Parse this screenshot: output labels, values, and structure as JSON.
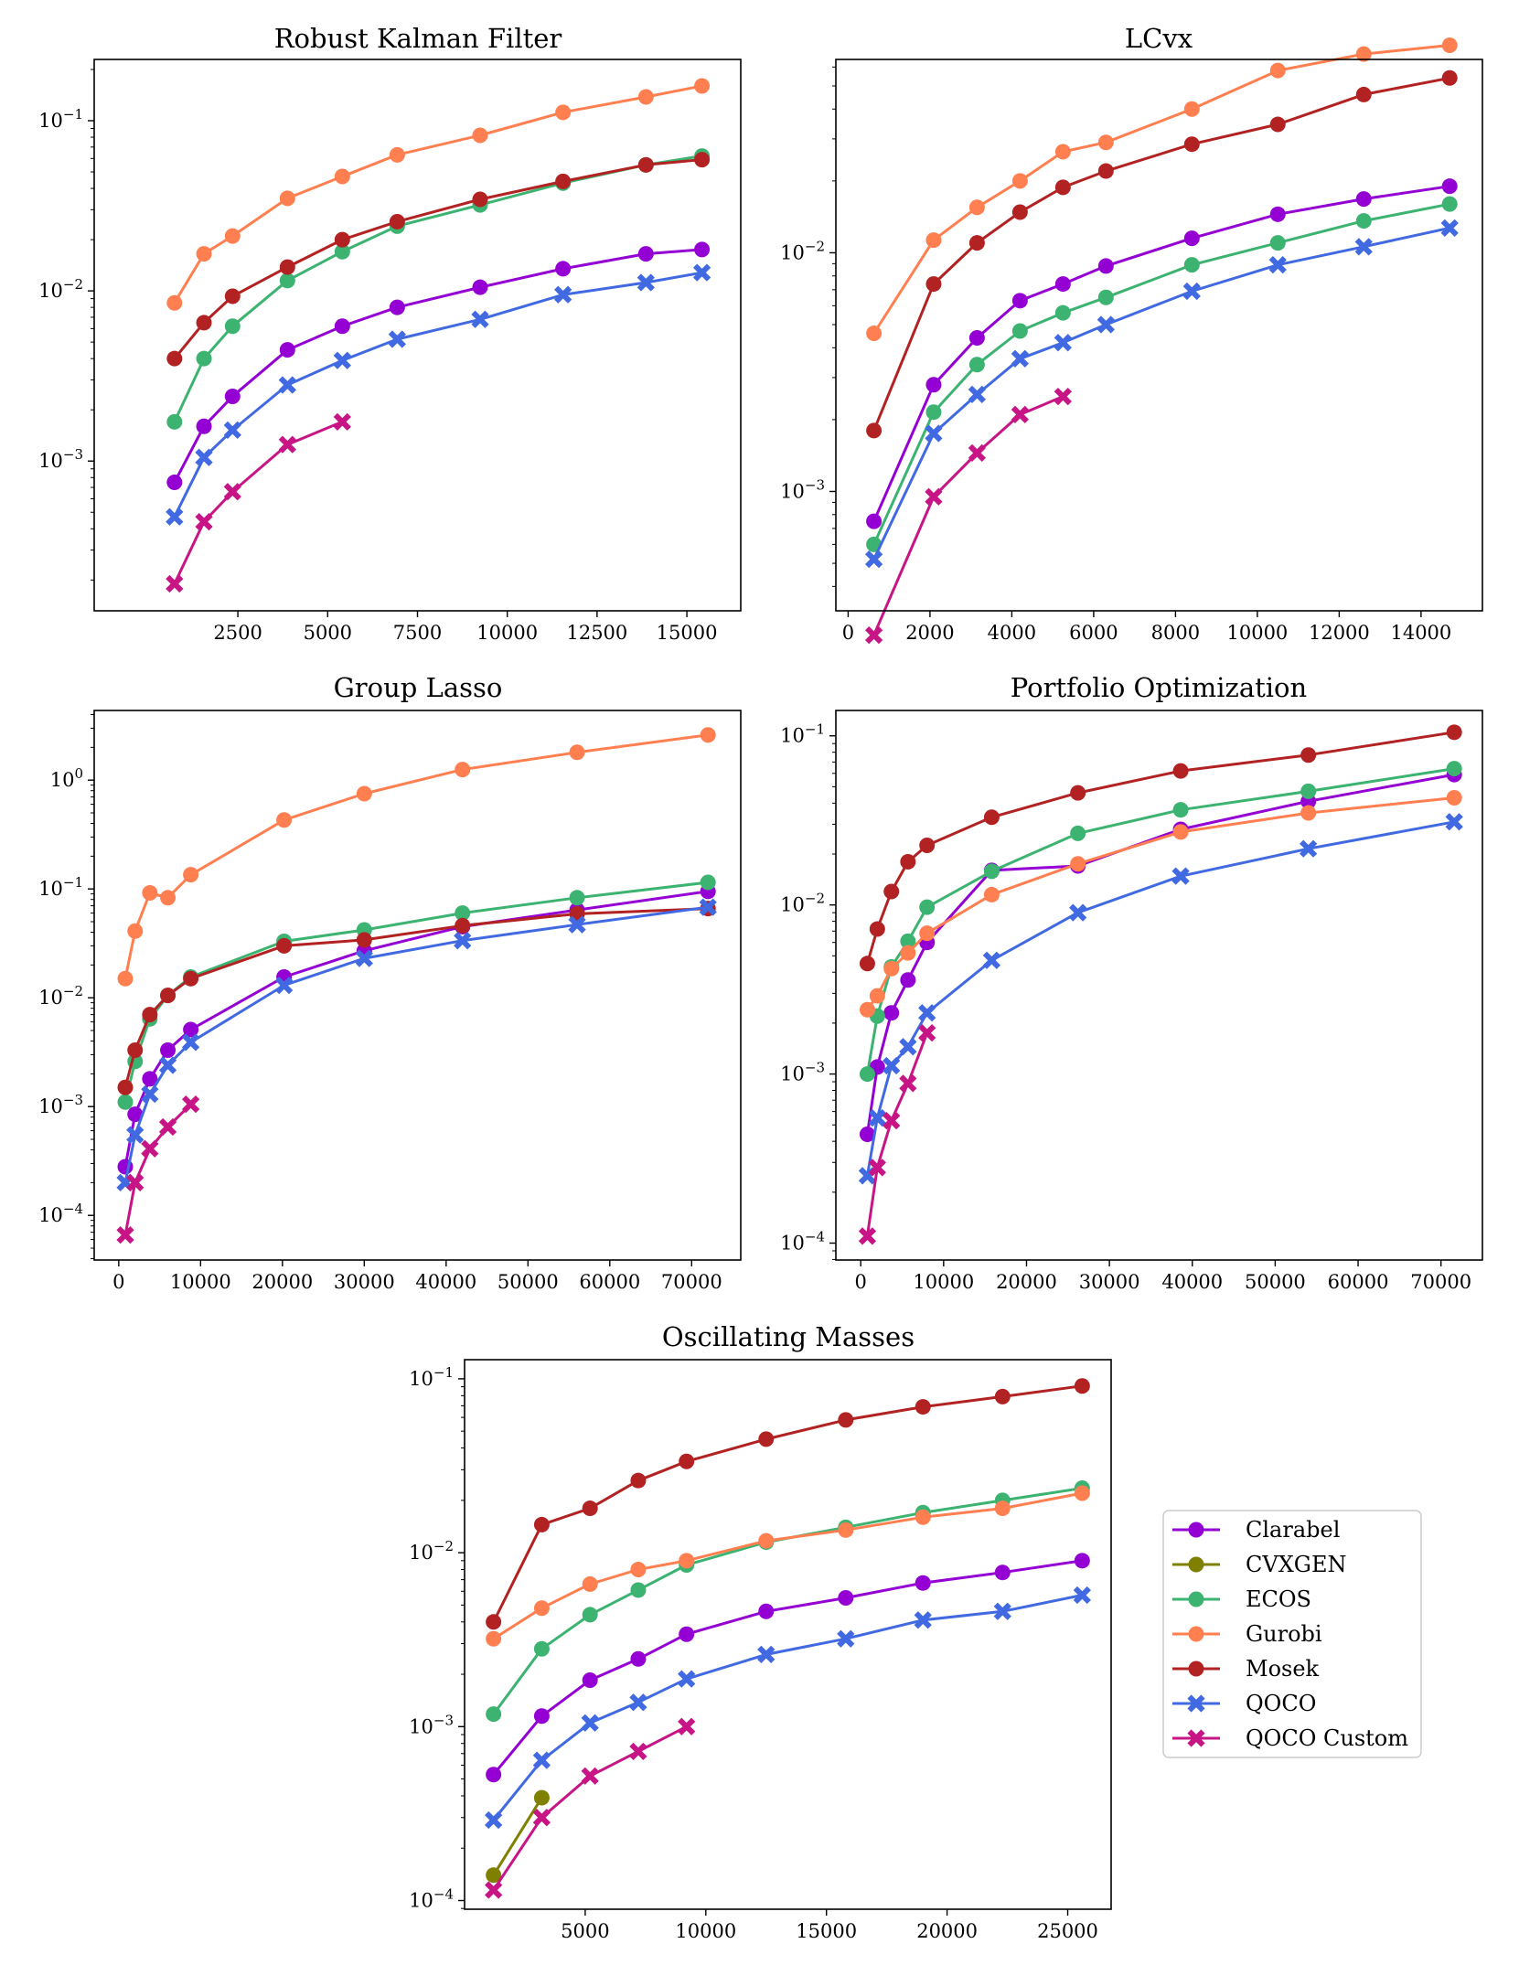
{
  "figure": {
    "series_styles": [
      {
        "name": "Clarabel",
        "color": "#9400D3",
        "marker": "circle"
      },
      {
        "name": "CVXGEN",
        "color": "#808000",
        "marker": "circle"
      },
      {
        "name": "ECOS",
        "color": "#3CB371",
        "marker": "circle"
      },
      {
        "name": "Gurobi",
        "color": "#FF7F50",
        "marker": "circle"
      },
      {
        "name": "Mosek",
        "color": "#B22222",
        "marker": "circle"
      },
      {
        "name": "QOCO",
        "color": "#4169E1",
        "marker": "cross"
      },
      {
        "name": "QOCO Custom",
        "color": "#C71585",
        "marker": "cross"
      }
    ],
    "legend": {
      "placement": "right of bottom chart",
      "entries": [
        "Clarabel",
        "CVXGEN",
        "ECOS",
        "Gurobi",
        "Mosek",
        "QOCO",
        "QOCO Custom"
      ]
    }
  },
  "chart_data": [
    {
      "type": "line",
      "title": "Robust Kalman Filter",
      "yscale": "log",
      "xlim": [
        -1500,
        16500
      ],
      "ylim_log10": [
        -3.88,
        -0.64
      ],
      "xticks": [
        2500,
        5000,
        7500,
        10000,
        12500,
        15000
      ],
      "xtick_labels": [
        "2500",
        "5000",
        "7500",
        "10000",
        "12500",
        "15000"
      ],
      "yticks_exp": [
        -3,
        -2,
        -1
      ],
      "series": [
        {
          "name": "Clarabel",
          "x": [
            736,
            1556,
            2352,
            3880,
            5408,
            6936,
            9244,
            11552,
            13860,
            15420
          ],
          "y": [
            0.00075,
            0.0016,
            0.0024,
            0.0045,
            0.0062,
            0.008,
            0.0105,
            0.0135,
            0.0165,
            0.0175
          ]
        },
        {
          "name": "ECOS",
          "x": [
            736,
            1556,
            2352,
            3880,
            5408,
            6936,
            9244,
            11552,
            13860,
            15420
          ],
          "y": [
            0.0017,
            0.004,
            0.0062,
            0.0115,
            0.017,
            0.024,
            0.032,
            0.043,
            0.055,
            0.062
          ]
        },
        {
          "name": "Gurobi",
          "x": [
            736,
            1556,
            2352,
            3880,
            5408,
            6936,
            9244,
            11552,
            13860,
            15420
          ],
          "y": [
            0.0085,
            0.0165,
            0.021,
            0.035,
            0.047,
            0.063,
            0.082,
            0.112,
            0.138,
            0.16
          ]
        },
        {
          "name": "Mosek",
          "x": [
            736,
            1556,
            2352,
            3880,
            5408,
            6936,
            9244,
            11552,
            13860,
            15420
          ],
          "y": [
            0.004,
            0.0065,
            0.0093,
            0.0138,
            0.02,
            0.0255,
            0.0345,
            0.044,
            0.055,
            0.059
          ]
        },
        {
          "name": "QOCO",
          "x": [
            736,
            1556,
            2352,
            3880,
            5408,
            6936,
            9244,
            11552,
            13860,
            15420
          ],
          "y": [
            0.00047,
            0.00105,
            0.00152,
            0.0028,
            0.0039,
            0.0052,
            0.0068,
            0.0095,
            0.0112,
            0.0128
          ]
        },
        {
          "name": "QOCO Custom",
          "x": [
            736,
            1556,
            2352,
            3880,
            5408
          ],
          "y": [
            0.00019,
            0.00044,
            0.00066,
            0.00125,
            0.0017
          ]
        }
      ]
    },
    {
      "type": "line",
      "title": "LCvx",
      "yscale": "log",
      "xlim": [
        -300,
        15500
      ],
      "ylim_log10": [
        -3.5,
        -1.19
      ],
      "xticks": [
        0,
        2000,
        4000,
        6000,
        8000,
        10000,
        12000,
        14000
      ],
      "xtick_labels": [
        "0",
        "2000",
        "4000",
        "6000",
        "8000",
        "10000",
        "12000",
        "14000"
      ],
      "yticks_exp": [
        -3,
        -2
      ],
      "series": [
        {
          "name": "Clarabel",
          "x": [
            630,
            2090,
            3150,
            4200,
            5250,
            6300,
            8400,
            10500,
            12600,
            14700
          ],
          "y": [
            0.00075,
            0.0028,
            0.0044,
            0.0063,
            0.0074,
            0.0088,
            0.0115,
            0.0145,
            0.0168,
            0.019
          ]
        },
        {
          "name": "ECOS",
          "x": [
            630,
            2090,
            3150,
            4200,
            5250,
            6300,
            8400,
            10500,
            12600,
            14700
          ],
          "y": [
            0.0006,
            0.00215,
            0.0034,
            0.0047,
            0.0056,
            0.0065,
            0.0089,
            0.011,
            0.0136,
            0.016
          ]
        },
        {
          "name": "Gurobi",
          "x": [
            630,
            2090,
            3150,
            4200,
            5250,
            6300,
            8400,
            10500,
            12600,
            14700
          ],
          "y": [
            0.0046,
            0.0113,
            0.0155,
            0.02,
            0.0265,
            0.029,
            0.04,
            0.058,
            0.068,
            0.074
          ]
        },
        {
          "name": "Mosek",
          "x": [
            630,
            2090,
            3150,
            4200,
            5250,
            6300,
            8400,
            10500,
            12600,
            14700
          ],
          "y": [
            0.0018,
            0.0074,
            0.011,
            0.0148,
            0.0188,
            0.022,
            0.0285,
            0.0345,
            0.046,
            0.054
          ]
        },
        {
          "name": "QOCO",
          "x": [
            630,
            2090,
            3150,
            4200,
            5250,
            6300,
            8400,
            10500,
            12600,
            14700
          ],
          "y": [
            0.00052,
            0.00175,
            0.00255,
            0.0036,
            0.0042,
            0.005,
            0.0069,
            0.0089,
            0.0106,
            0.0127
          ]
        },
        {
          "name": "QOCO Custom",
          "x": [
            630,
            2090,
            3150,
            4200,
            5250
          ],
          "y": [
            0.00025,
            0.00095,
            0.00145,
            0.0021,
            0.0025
          ]
        }
      ]
    },
    {
      "type": "line",
      "title": "Group Lasso",
      "yscale": "log",
      "xlim": [
        -3000,
        76000
      ],
      "ylim_log10": [
        -4.41,
        0.64
      ],
      "xticks": [
        0,
        10000,
        20000,
        30000,
        40000,
        50000,
        60000,
        70000
      ],
      "xtick_labels": [
        "0",
        "10000",
        "20000",
        "30000",
        "40000",
        "50000",
        "60000",
        "70000"
      ],
      "yticks_exp": [
        -4,
        -3,
        -2,
        -1,
        0
      ],
      "series": [
        {
          "name": "Clarabel",
          "x": [
            800,
            2000,
            3800,
            6000,
            8800,
            20200,
            30000,
            42000,
            56000,
            72000
          ],
          "y": [
            0.00028,
            0.00085,
            0.0018,
            0.0033,
            0.0051,
            0.0155,
            0.027,
            0.045,
            0.064,
            0.095
          ]
        },
        {
          "name": "ECOS",
          "x": [
            800,
            2000,
            3800,
            6000,
            8800,
            20200,
            30000,
            42000,
            56000,
            72000
          ],
          "y": [
            0.0011,
            0.0026,
            0.0064,
            0.0105,
            0.0155,
            0.033,
            0.042,
            0.06,
            0.083,
            0.115
          ]
        },
        {
          "name": "Gurobi",
          "x": [
            800,
            2000,
            3800,
            6000,
            8800,
            20200,
            30000,
            42000,
            56000,
            72000
          ],
          "y": [
            0.015,
            0.041,
            0.092,
            0.083,
            0.135,
            0.43,
            0.75,
            1.25,
            1.8,
            2.6
          ]
        },
        {
          "name": "Mosek",
          "x": [
            800,
            2000,
            3800,
            6000,
            8800,
            20200,
            30000,
            42000,
            56000,
            72000
          ],
          "y": [
            0.0015,
            0.0033,
            0.007,
            0.0105,
            0.015,
            0.03,
            0.034,
            0.046,
            0.059,
            0.066
          ]
        },
        {
          "name": "QOCO",
          "x": [
            800,
            2000,
            3800,
            6000,
            8800,
            20200,
            30000,
            42000,
            56000,
            72000
          ],
          "y": [
            0.0002,
            0.00055,
            0.0013,
            0.0024,
            0.0039,
            0.013,
            0.023,
            0.0335,
            0.047,
            0.068
          ]
        },
        {
          "name": "QOCO Custom",
          "x": [
            800,
            2000,
            3800,
            6000,
            8800
          ],
          "y": [
            6.6e-05,
            0.0002,
            0.00041,
            0.00065,
            0.00105
          ]
        }
      ]
    },
    {
      "type": "line",
      "title": "Portfolio Optimization",
      "yscale": "log",
      "xlim": [
        -3000,
        75000
      ],
      "ylim_log10": [
        -4.1,
        -0.85
      ],
      "xticks": [
        0,
        10000,
        20000,
        30000,
        40000,
        50000,
        60000,
        70000
      ],
      "xtick_labels": [
        "0",
        "10000",
        "20000",
        "30000",
        "40000",
        "50000",
        "60000",
        "70000"
      ],
      "yticks_exp": [
        -4,
        -3,
        -2,
        -1
      ],
      "series": [
        {
          "name": "Clarabel",
          "x": [
            800,
            2000,
            3700,
            5700,
            8000,
            15800,
            26200,
            38600,
            54000,
            71600
          ],
          "y": [
            0.00044,
            0.0011,
            0.0023,
            0.0036,
            0.006,
            0.016,
            0.017,
            0.028,
            0.041,
            0.059
          ]
        },
        {
          "name": "ECOS",
          "x": [
            800,
            2000,
            3700,
            5700,
            8000,
            15800,
            26200,
            38600,
            54000,
            71600
          ],
          "y": [
            0.001,
            0.0022,
            0.0043,
            0.0061,
            0.0097,
            0.0158,
            0.0265,
            0.0365,
            0.047,
            0.064
          ]
        },
        {
          "name": "Gurobi",
          "x": [
            800,
            2000,
            3700,
            5700,
            8000,
            15800,
            26200,
            38600,
            54000,
            71600
          ],
          "y": [
            0.0024,
            0.0029,
            0.0042,
            0.0052,
            0.0068,
            0.0115,
            0.0175,
            0.027,
            0.035,
            0.043
          ]
        },
        {
          "name": "Mosek",
          "x": [
            800,
            2000,
            3700,
            5700,
            8000,
            15800,
            26200,
            38600,
            54000,
            71600
          ],
          "y": [
            0.0045,
            0.0072,
            0.012,
            0.018,
            0.0225,
            0.033,
            0.046,
            0.062,
            0.077,
            0.105
          ]
        },
        {
          "name": "QOCO",
          "x": [
            800,
            2000,
            3700,
            5700,
            8000,
            15800,
            26200,
            38600,
            54000,
            71600
          ],
          "y": [
            0.00025,
            0.00055,
            0.00112,
            0.00145,
            0.0023,
            0.0047,
            0.009,
            0.0148,
            0.0215,
            0.031
          ]
        },
        {
          "name": "QOCO Custom",
          "x": [
            800,
            2000,
            3700,
            5700,
            8000
          ],
          "y": [
            0.00011,
            0.00028,
            0.00053,
            0.00088,
            0.00175
          ]
        }
      ]
    },
    {
      "type": "line",
      "title": "Oscillating Masses",
      "yscale": "log",
      "xlim": [
        0,
        26800
      ],
      "ylim_log10": [
        -4.05,
        -0.89
      ],
      "xticks": [
        5000,
        10000,
        15000,
        20000,
        25000
      ],
      "xtick_labels": [
        "5000",
        "10000",
        "15000",
        "20000",
        "25000"
      ],
      "yticks_exp": [
        -4,
        -3,
        -2,
        -1
      ],
      "series": [
        {
          "name": "Clarabel",
          "x": [
            1200,
            3200,
            5200,
            7200,
            9200,
            12500,
            15800,
            19000,
            22300,
            25600
          ],
          "y": [
            0.00053,
            0.00115,
            0.00185,
            0.00245,
            0.0034,
            0.0046,
            0.0055,
            0.0067,
            0.0077,
            0.009
          ]
        },
        {
          "name": "CVXGEN",
          "x": [
            1200,
            3200
          ],
          "y": [
            0.00014,
            0.00039
          ]
        },
        {
          "name": "ECOS",
          "x": [
            1200,
            3200,
            5200,
            7200,
            9200,
            12500,
            15800,
            19000,
            22300,
            25600
          ],
          "y": [
            0.00118,
            0.0028,
            0.0044,
            0.0061,
            0.0085,
            0.0115,
            0.014,
            0.017,
            0.02,
            0.0235
          ]
        },
        {
          "name": "Gurobi",
          "x": [
            1200,
            3200,
            5200,
            7200,
            9200,
            12500,
            15800,
            19000,
            22300,
            25600
          ],
          "y": [
            0.0032,
            0.0048,
            0.0066,
            0.008,
            0.009,
            0.0117,
            0.0135,
            0.016,
            0.018,
            0.022
          ]
        },
        {
          "name": "Mosek",
          "x": [
            1200,
            3200,
            5200,
            7200,
            9200,
            12500,
            15800,
            19000,
            22300,
            25600
          ],
          "y": [
            0.004,
            0.0145,
            0.018,
            0.026,
            0.0335,
            0.045,
            0.058,
            0.069,
            0.079,
            0.091
          ]
        },
        {
          "name": "QOCO",
          "x": [
            1200,
            3200,
            5200,
            7200,
            9200,
            12500,
            15800,
            19000,
            22300,
            25600
          ],
          "y": [
            0.00029,
            0.00064,
            0.00105,
            0.00138,
            0.00188,
            0.0026,
            0.0032,
            0.0041,
            0.0046,
            0.0057
          ]
        },
        {
          "name": "QOCO Custom",
          "x": [
            1200,
            3200,
            5200,
            7200,
            9200
          ],
          "y": [
            0.000115,
            0.0003,
            0.00052,
            0.00072,
            0.001
          ]
        }
      ]
    }
  ]
}
